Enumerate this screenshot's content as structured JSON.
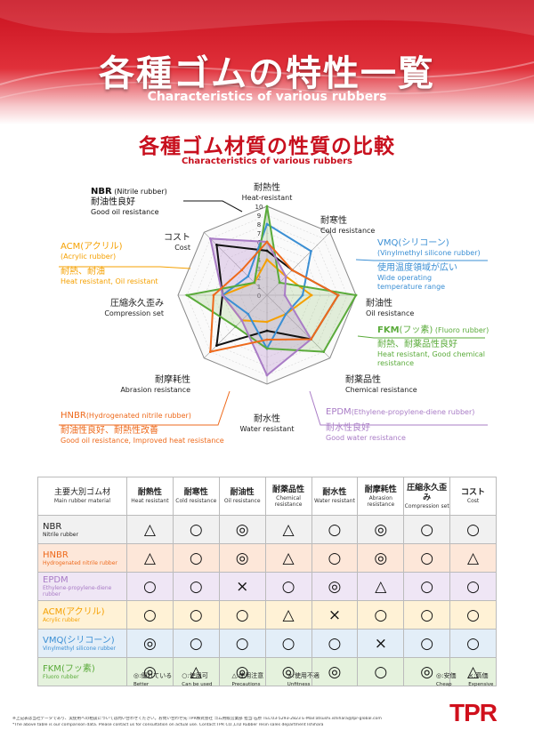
{
  "header": {
    "title_jp": "各種ゴムの特性一覧",
    "title_en": "Characteristics of various rubbers",
    "subtitle_jp": "各種ゴム材質の性質の比較",
    "subtitle_en": "Characteristics of various rubbers"
  },
  "chart_data": {
    "type": "radar",
    "title": "各種ゴム材質の性質の比較",
    "subtitle": "Characteristics of various rubbers",
    "axes": [
      {
        "jp": "耐熱性",
        "en": "Heat-resistant"
      },
      {
        "jp": "耐寒性",
        "en": "Cold resistance"
      },
      {
        "jp": "耐油性",
        "en": "Oil resistance"
      },
      {
        "jp": "耐薬品性",
        "en": "Chemical resistance"
      },
      {
        "jp": "耐水性",
        "en": "Water resistant"
      },
      {
        "jp": "耐摩耗性",
        "en": "Abrasion resistance"
      },
      {
        "jp": "圧縮永久歪み",
        "en": "Compression set"
      },
      {
        "jp": "コスト",
        "en": "Cost"
      }
    ],
    "range": [
      0,
      10
    ],
    "ticks": [
      "0",
      "1",
      "2",
      "3",
      "4",
      "5",
      "6",
      "7",
      "8",
      "9",
      "10"
    ],
    "grid": true,
    "series": [
      {
        "name": "NBR",
        "name_paren": "(Nitrile rubber)",
        "color": "#111111",
        "fill": "none",
        "desc_jp": "耐油性良好",
        "desc_en": "Good oil resistance",
        "values": [
          5,
          4,
          8,
          7,
          4,
          8,
          5,
          8
        ]
      },
      {
        "name": "ACM",
        "name_paren": "(アクリル)",
        "name_sub": "(Acrylic rubber)",
        "color": "#f5a000",
        "fill": "none",
        "desc_jp": "耐熱、耐油",
        "desc_en": "Heat resistant, Oil resistant",
        "values": [
          4,
          3,
          5,
          3,
          3,
          4,
          5,
          2
        ]
      },
      {
        "name": "VMQ",
        "name_paren": "(シリコーン)",
        "name_sub": "(Vinylmethyl silicone rubber)",
        "color": "#3b8fd4",
        "fill": "none",
        "desc_jp": "使用温度領域が広い",
        "desc_en": "Wide operating temperature range",
        "values": [
          8,
          7,
          4,
          3,
          6,
          3,
          5,
          3
        ]
      },
      {
        "name": "FKM",
        "name_paren": "(フッ素)",
        "name_sub": "(Fluoro rubber)",
        "color": "#5aab3a",
        "fill": "rgba(150,200,120,0.25)",
        "desc_jp": "耐熱、耐薬品性良好",
        "desc_en": "Heat resistant, Good chemical resistance",
        "values": [
          10,
          2,
          10,
          9,
          6,
          5,
          9,
          2
        ]
      },
      {
        "name": "EPDM",
        "name_paren": "(Ethylene-propylene-diene rubber)",
        "color": "#a97cc6",
        "fill": "rgba(190,150,210,0.35)",
        "desc_jp": "耐水性良好",
        "desc_en": "Good water resistance",
        "values": [
          6,
          3,
          2,
          7,
          9,
          4,
          5,
          9
        ]
      },
      {
        "name": "HNBR",
        "name_paren": "(Hydrogenated nitrile rubber)",
        "color": "#ee6a1c",
        "fill": "none",
        "desc_jp": "耐油性良好、耐熱性改善",
        "desc_en": "Good oil resistance, Improved heat resistance",
        "values": [
          6,
          4,
          8,
          7,
          5,
          9,
          6,
          4
        ]
      }
    ]
  },
  "table": {
    "corner_jp": "主要大別ゴム材",
    "corner_en": "Main rubber material",
    "columns": [
      {
        "jp": "耐熱性",
        "en": "Heat resistant"
      },
      {
        "jp": "耐寒性",
        "en": "Cold resistance"
      },
      {
        "jp": "耐油性",
        "en": "Oil resistance"
      },
      {
        "jp": "耐薬品性",
        "en": "Chemical resistance"
      },
      {
        "jp": "耐水性",
        "en": "Water resistant"
      },
      {
        "jp": "耐摩耗性",
        "en": "Abrasion resistance"
      },
      {
        "jp": "圧縮永久歪み",
        "en": "Compression set"
      },
      {
        "jp": "コスト",
        "en": "Cost"
      }
    ],
    "rows": [
      {
        "name_jp": "NBR",
        "name_en": "Nitrile rubber",
        "bg": "#f1f1f1",
        "color": "#222222",
        "cells": [
          "△",
          "○",
          "◎",
          "△",
          "○",
          "◎",
          "○",
          "○"
        ]
      },
      {
        "name_jp": "HNBR",
        "name_en": "Hydrogenated nitrile rubber",
        "bg": "#fde7d9",
        "color": "#ee6a1c",
        "cells": [
          "△",
          "○",
          "◎",
          "△",
          "○",
          "◎",
          "○",
          "△"
        ]
      },
      {
        "name_jp": "EPDM",
        "name_en": "Ethylene-propylene-diene rubber",
        "bg": "#efe6f5",
        "color": "#a97cc6",
        "cells": [
          "○",
          "○",
          "×",
          "○",
          "◎",
          "△",
          "○",
          "○"
        ]
      },
      {
        "name_jp": "ACM(アクリル)",
        "name_en": "Acrylic rubber",
        "bg": "#fff2d6",
        "color": "#f5a000",
        "cells": [
          "○",
          "○",
          "○",
          "△",
          "×",
          "○",
          "○",
          "○"
        ]
      },
      {
        "name_jp": "VMQ(シリコーン)",
        "name_en": "Vinylmethyl silicone rubber",
        "bg": "#e3eef8",
        "color": "#3b8fd4",
        "cells": [
          "◎",
          "○",
          "○",
          "○",
          "○",
          "×",
          "○",
          "○"
        ]
      },
      {
        "name_jp": "FKM(フッ素)",
        "name_en": "Fluoro rubber",
        "bg": "#e5f2dd",
        "color": "#5aab3a",
        "cells": [
          "◎",
          "△",
          "◎",
          "◎",
          "◎",
          "○",
          "◎",
          "△"
        ]
      }
    ]
  },
  "legend": {
    "left": [
      {
        "jp": "◎:優れている",
        "en": "Better"
      },
      {
        "jp": "○:使用可",
        "en": "Can be used"
      },
      {
        "jp": "△:使用注意",
        "en": "Precautions"
      },
      {
        "jp": "×:使用不適",
        "en": "Unfitness"
      }
    ],
    "right": [
      {
        "jp": "◎:安価",
        "en": "Cheap"
      },
      {
        "jp": "×:高価",
        "en": "Expensive"
      }
    ]
  },
  "footnote": {
    "line1": "※上記表は当社データであり、実使用への相談については問い合わせください。お問い合わせ先:TPR株式会社 ゴム用販営業部 担当:石原 TEL:03-5293-2823 E-Mail:atsushi.ishihara@tpr-global.com",
    "line2": "*The above table is our comparison data. Please contact us for consultation on actual use. Contact:TPR CO.,LTD Rubber resin sales department Ishihara"
  },
  "logo": "TPR",
  "colors": {
    "brand_red": "#c8101e"
  }
}
